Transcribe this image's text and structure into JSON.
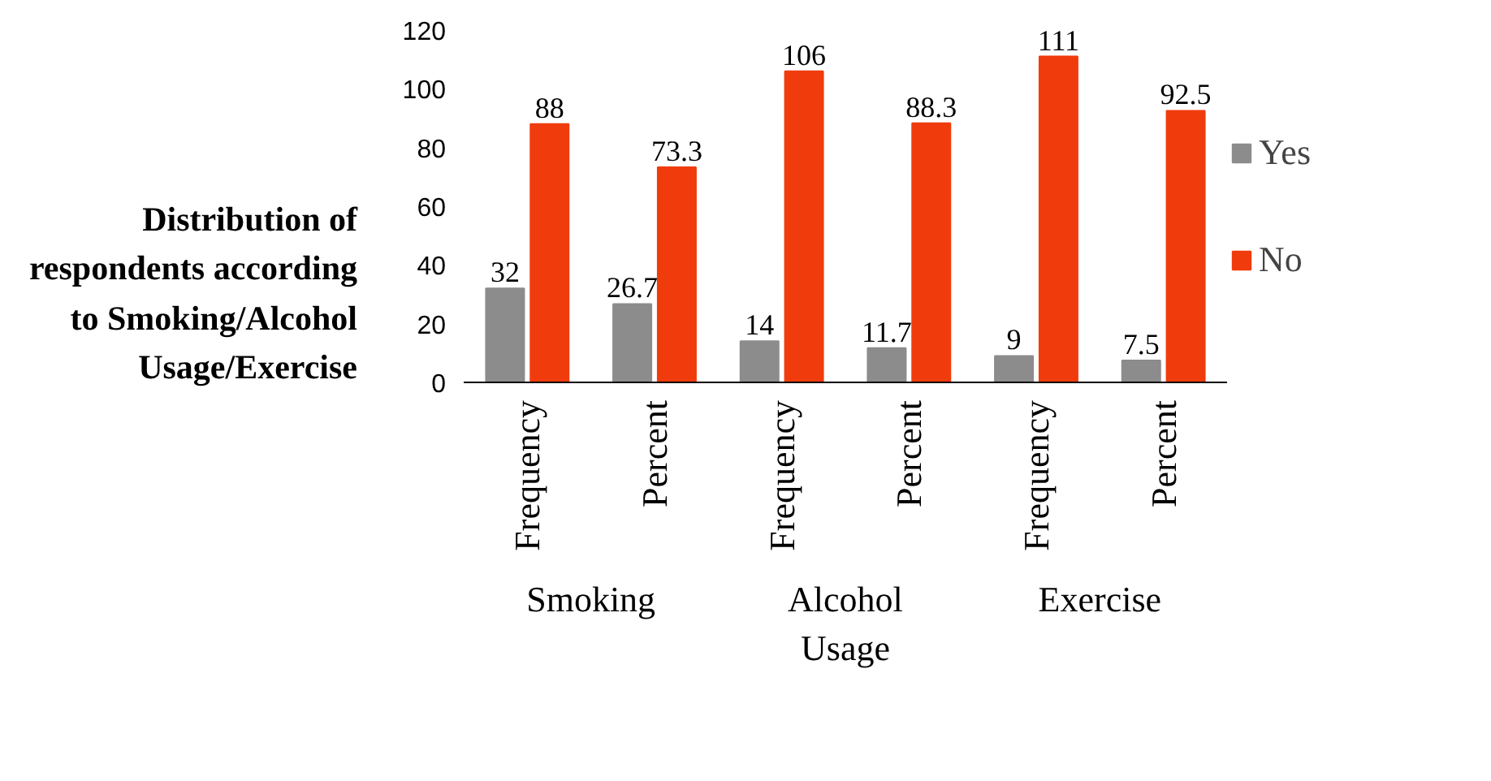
{
  "chart_data": {
    "type": "bar",
    "title": "Distribution of respondents according to Smoking/Alcohol Usage/Exercise",
    "categories": [
      "Frequency",
      "Percent",
      "Frequency",
      "Percent",
      "Frequency",
      "Percent"
    ],
    "series": [
      {
        "name": "Yes",
        "color": "#8c8c8c",
        "values": [
          32,
          26.7,
          14,
          11.7,
          9,
          7.5
        ]
      },
      {
        "name": "No",
        "color": "#f03c0c",
        "values": [
          88,
          73.3,
          106,
          88.3,
          111,
          92.5
        ]
      }
    ],
    "annotations": [
      "Smoking",
      "Alcohol Usage",
      "Exercise"
    ],
    "ylim": [
      0,
      120
    ],
    "yticks": [
      0,
      20,
      40,
      60,
      80,
      100,
      120
    ],
    "data_labels": true,
    "grid": false,
    "legend": "right"
  }
}
